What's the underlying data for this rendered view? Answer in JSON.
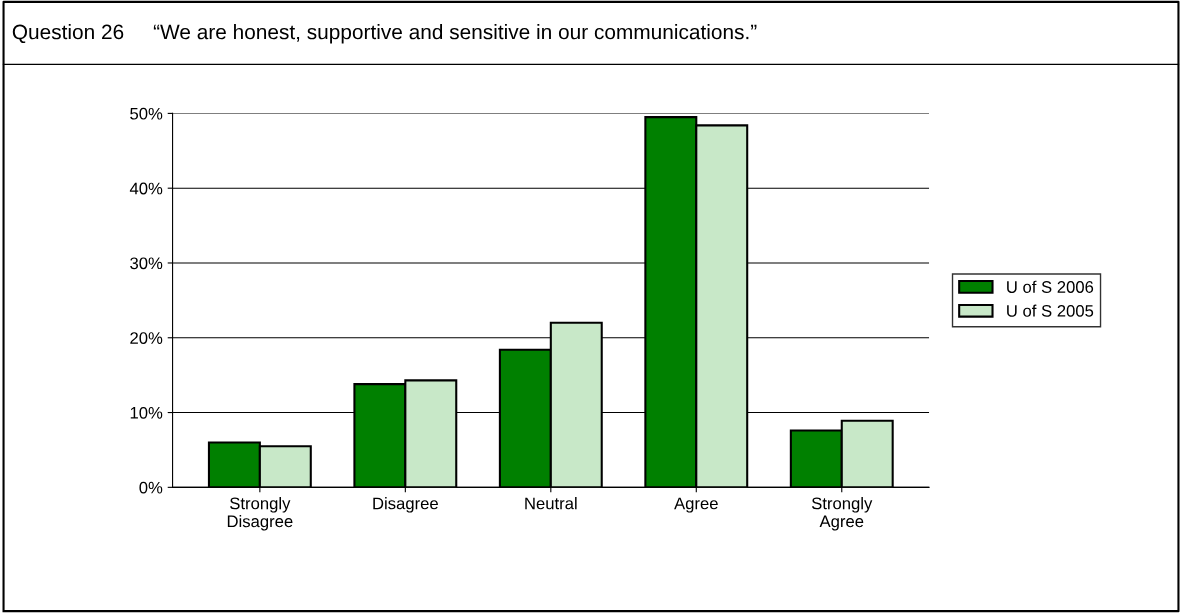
{
  "chart_data": {
    "type": "bar",
    "title": "Question 26     “We are honest, supportive and sensitive in our communications.”",
    "categories": [
      "Strongly\nDisagree",
      "Disagree",
      "Neutral",
      "Agree",
      "Strongly\nAgree"
    ],
    "series": [
      {
        "name": "U of S 2006",
        "color": "#008000",
        "values": [
          6.0,
          13.8,
          18.4,
          49.5,
          7.6
        ]
      },
      {
        "name": "U of S 2005",
        "color": "#c8e8c8",
        "values": [
          5.5,
          14.3,
          22.0,
          48.4,
          8.9
        ]
      }
    ],
    "ylim": [
      0,
      50
    ],
    "yticks": [
      {
        "value": 0,
        "label": "0%"
      },
      {
        "value": 10,
        "label": "10%"
      },
      {
        "value": 20,
        "label": "20%"
      },
      {
        "value": 30,
        "label": "30%"
      },
      {
        "value": 40,
        "label": "40%"
      },
      {
        "value": 50,
        "label": "50%"
      }
    ],
    "grid": "y",
    "legend": "right"
  }
}
